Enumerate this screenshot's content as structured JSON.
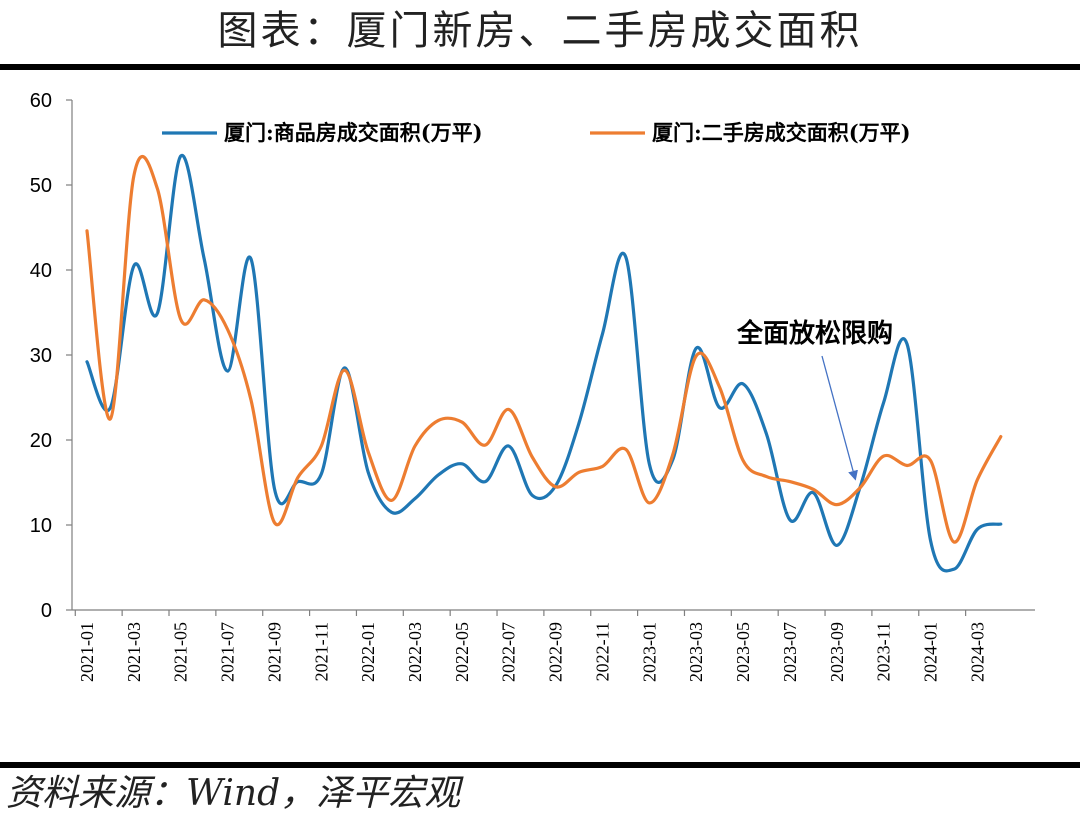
{
  "page": {
    "title": "图表：厦门新房、二手房成交面积",
    "source": "资料来源：Wind，泽平宏观"
  },
  "chart_data": {
    "type": "line",
    "title": "",
    "xlabel": "",
    "ylabel": "",
    "ylim": [
      0,
      60
    ],
    "yticks": [
      0,
      10,
      20,
      30,
      40,
      50,
      60
    ],
    "grid": false,
    "legend_position": "top",
    "x": [
      "2021-01",
      "2021-02",
      "2021-03",
      "2021-04",
      "2021-05",
      "2021-06",
      "2021-07",
      "2021-08",
      "2021-09",
      "2021-10",
      "2021-11",
      "2021-12",
      "2022-01",
      "2022-02",
      "2022-03",
      "2022-04",
      "2022-05",
      "2022-06",
      "2022-07",
      "2022-08",
      "2022-09",
      "2022-10",
      "2022-11",
      "2022-12",
      "2023-01",
      "2023-02",
      "2023-03",
      "2023-04",
      "2023-05",
      "2023-06",
      "2023-07",
      "2023-08",
      "2023-09",
      "2023-10",
      "2023-11",
      "2023-12",
      "2024-01",
      "2024-02",
      "2024-03",
      "2024-04"
    ],
    "xtick_labels": [
      "2021-01",
      "2021-03",
      "2021-05",
      "2021-07",
      "2021-09",
      "2021-11",
      "2022-01",
      "2022-03",
      "2022-05",
      "2022-07",
      "2022-09",
      "2022-11",
      "2023-01",
      "2023-03",
      "2023-05",
      "2023-07",
      "2023-09",
      "2023-11",
      "2024-01",
      "2024-03"
    ],
    "series": [
      {
        "name": "厦门:商品房成交面积(万平)",
        "color": "#1f77b4",
        "values": [
          29.2,
          23.8,
          40.5,
          34.9,
          53.4,
          41.3,
          28.1,
          41.3,
          14.3,
          15.1,
          16.0,
          28.5,
          16.2,
          11.5,
          13.1,
          15.9,
          17.2,
          15.1,
          19.3,
          13.5,
          14.6,
          22.0,
          32.5,
          41.5,
          17.2,
          17.7,
          30.8,
          23.8,
          26.6,
          20.7,
          10.6,
          13.8,
          7.6,
          14.5,
          24.4,
          31.3,
          8.2,
          4.8,
          9.5,
          10.1
        ]
      },
      {
        "name": "厦门:二手房成交面积(万平)",
        "color": "#ed7d31",
        "values": [
          44.6,
          22.5,
          51.1,
          49.6,
          34.2,
          36.5,
          33.0,
          24.7,
          10.3,
          15.6,
          19.3,
          28.2,
          18.6,
          12.9,
          19.3,
          22.3,
          22.1,
          19.4,
          23.6,
          18.0,
          14.5,
          16.2,
          16.9,
          18.9,
          12.6,
          18.3,
          29.9,
          26.2,
          17.6,
          15.7,
          15.1,
          14.2,
          12.4,
          14.4,
          18.1,
          17.0,
          17.6,
          8.0,
          15.3,
          20.4
        ]
      }
    ],
    "annotations": [
      {
        "text": "全面放松限购",
        "points_to": "2023-10"
      }
    ]
  }
}
